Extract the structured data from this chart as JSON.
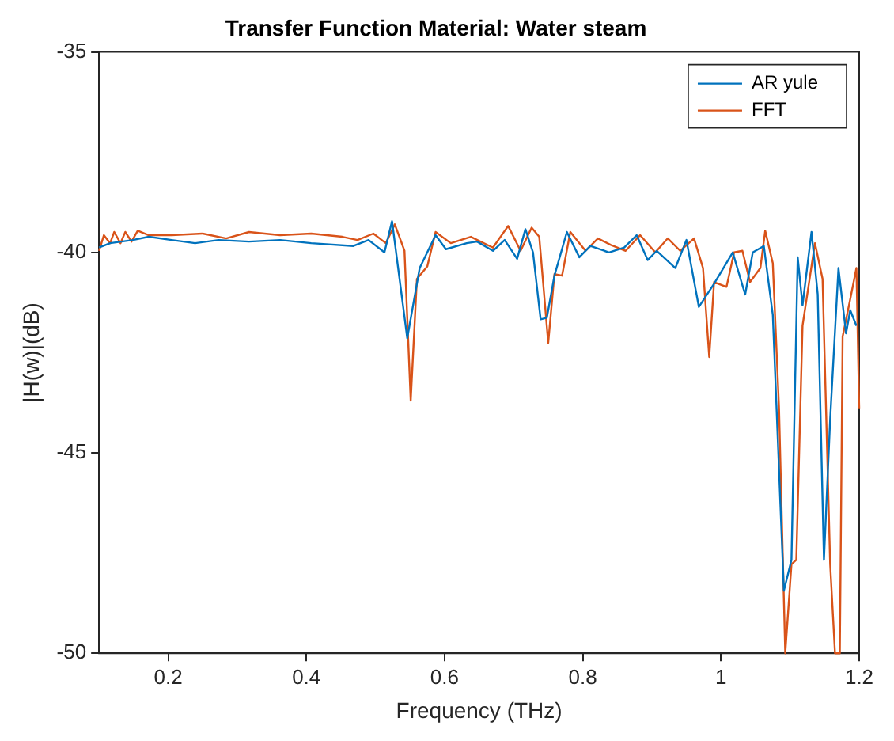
{
  "chart_data": {
    "type": "line",
    "title": "Transfer Function Material: Water steam",
    "xlabel": "Frequency (THz)",
    "ylabel": "|H(w)|(dB)",
    "xlim": [
      0.1,
      1.2
    ],
    "xticks": [
      0.2,
      0.4,
      0.6,
      0.8,
      1,
      1.2
    ],
    "ylim": [
      -50,
      -35
    ],
    "yticks": [
      -50,
      -45,
      -40,
      -35
    ],
    "grid": false,
    "legend": "top right",
    "marker": "none",
    "line_style": "solid",
    "series": [
      {
        "name": "AR yule",
        "color": "#0072bd",
        "x": [
          0.1,
          0.116,
          0.149,
          0.172,
          0.205,
          0.239,
          0.273,
          0.317,
          0.362,
          0.407,
          0.468,
          0.49,
          0.513,
          0.524,
          0.546,
          0.564,
          0.587,
          0.602,
          0.632,
          0.647,
          0.67,
          0.687,
          0.705,
          0.717,
          0.728,
          0.739,
          0.748,
          0.759,
          0.777,
          0.795,
          0.811,
          0.838,
          0.86,
          0.878,
          0.894,
          0.907,
          0.934,
          0.95,
          0.968,
          0.99,
          1.017,
          1.035,
          1.046,
          1.062,
          1.075,
          1.091,
          1.102,
          1.111,
          1.118,
          1.131,
          1.14,
          1.149,
          1.158,
          1.17,
          1.181,
          1.187,
          1.196
        ],
        "values": [
          -39.88,
          -39.77,
          -39.69,
          -39.61,
          -39.69,
          -39.77,
          -39.69,
          -39.73,
          -39.69,
          -39.77,
          -39.84,
          -39.69,
          -40.0,
          -39.22,
          -42.14,
          -40.39,
          -39.57,
          -39.92,
          -39.77,
          -39.73,
          -39.96,
          -39.69,
          -40.16,
          -39.42,
          -40.0,
          -41.67,
          -41.63,
          -40.58,
          -39.49,
          -40.12,
          -39.84,
          -40.0,
          -39.88,
          -39.57,
          -40.19,
          -39.96,
          -40.39,
          -39.69,
          -41.36,
          -40.78,
          -40.0,
          -41.05,
          -40.0,
          -39.84,
          -41.56,
          -48.44,
          -47.67,
          -40.12,
          -41.32,
          -39.49,
          -41.05,
          -47.67,
          -44.16,
          -40.39,
          -42.02,
          -41.44,
          -41.83
        ]
      },
      {
        "name": "FFT",
        "color": "#d95319",
        "x": [
          0.1,
          0.107,
          0.116,
          0.122,
          0.131,
          0.138,
          0.147,
          0.156,
          0.172,
          0.205,
          0.25,
          0.284,
          0.317,
          0.362,
          0.407,
          0.452,
          0.474,
          0.497,
          0.515,
          0.528,
          0.542,
          0.551,
          0.56,
          0.575,
          0.587,
          0.609,
          0.638,
          0.67,
          0.692,
          0.71,
          0.726,
          0.737,
          0.75,
          0.759,
          0.77,
          0.782,
          0.804,
          0.822,
          0.84,
          0.862,
          0.883,
          0.905,
          0.923,
          0.941,
          0.961,
          0.974,
          0.983,
          0.99,
          1.008,
          1.019,
          1.031,
          1.042,
          1.057,
          1.064,
          1.075,
          1.084,
          1.093,
          1.102,
          1.109,
          1.118,
          1.136,
          1.147,
          1.158,
          1.165,
          1.172,
          1.176,
          1.187,
          1.196,
          1.2
        ],
        "values": [
          -39.96,
          -39.57,
          -39.77,
          -39.49,
          -39.77,
          -39.49,
          -39.73,
          -39.46,
          -39.57,
          -39.57,
          -39.53,
          -39.65,
          -39.49,
          -39.57,
          -39.53,
          -39.61,
          -39.69,
          -39.53,
          -39.77,
          -39.3,
          -39.96,
          -43.7,
          -40.66,
          -40.35,
          -39.49,
          -39.77,
          -39.61,
          -39.88,
          -39.34,
          -39.96,
          -39.38,
          -39.61,
          -42.26,
          -40.54,
          -40.58,
          -39.49,
          -39.96,
          -39.65,
          -39.81,
          -39.96,
          -39.57,
          -40.0,
          -39.65,
          -39.96,
          -39.65,
          -40.39,
          -42.61,
          -40.74,
          -40.86,
          -40.0,
          -39.96,
          -40.74,
          -40.39,
          -39.46,
          -40.27,
          -43.89,
          -50,
          -47.78,
          -47.67,
          -41.83,
          -39.77,
          -40.66,
          -47.78,
          -50,
          -50,
          -42.1,
          -41.17,
          -40.39,
          -43.89
        ]
      }
    ]
  }
}
